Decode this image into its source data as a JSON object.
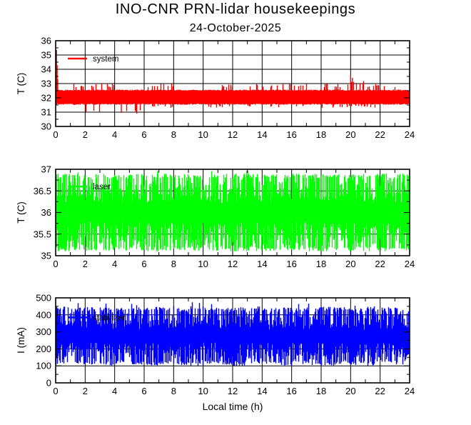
{
  "chart_data": {
    "type": "line",
    "title": "INO-CNR PRN-lidar housekeepings",
    "subtitle": "24-October-2025",
    "xlabel": "Local time (h)",
    "x_range": [
      0,
      24
    ],
    "x_ticks": [
      0,
      2,
      4,
      6,
      8,
      10,
      12,
      14,
      16,
      18,
      20,
      22,
      24
    ],
    "x_minor_step": 1,
    "grid": "on",
    "colors": {
      "axis": "#000000",
      "background": "#ffffff"
    },
    "charts": [
      {
        "id": "system-temperature",
        "legend": "system",
        "color": "#ff0000",
        "style": "band",
        "ylabel": "T (C)",
        "ylim": [
          30,
          36
        ],
        "yticks": [
          30,
          31,
          32,
          33,
          34,
          35,
          36
        ],
        "band": [
          31.6,
          32.5
        ],
        "hourly_envelope": {
          "max": [
            32.5,
            33.0,
            33.0,
            33.0,
            32.5,
            32.5,
            33.0,
            33.0,
            32.5,
            32.5,
            32.5,
            33.0,
            32.5,
            33.0,
            33.0,
            33.0,
            33.0,
            32.5,
            33.0,
            33.0,
            33.2,
            33.0,
            33.0,
            32.5
          ],
          "min": [
            31.5,
            31.4,
            31.0,
            31.5,
            31.0,
            31.0,
            31.3,
            31.3,
            31.5,
            31.5,
            31.3,
            31.3,
            31.5,
            31.3,
            31.3,
            31.3,
            31.4,
            31.5,
            31.3,
            31.3,
            31.3,
            31.3,
            31.5,
            31.5
          ]
        },
        "events": [
          {
            "x": 0.06,
            "y": 35.35
          },
          {
            "x": 0.1,
            "y": 34.3
          },
          {
            "x": 0.14,
            "y": 33.3
          },
          {
            "x": 4.45,
            "y": 30.95
          },
          {
            "x": 5.5,
            "y": 30.9
          },
          {
            "x": 20.0,
            "y": 33.6
          },
          {
            "x": 20.12,
            "y": 33.4
          }
        ],
        "legend_y": 34.75
      },
      {
        "id": "laser-temperature",
        "legend": "laser",
        "color": "#00ff00",
        "style": "noise",
        "ylabel": "T (C)",
        "ylim": [
          35,
          37
        ],
        "yticks": [
          35,
          35.5,
          36,
          36.5,
          37
        ],
        "band": [
          35.1,
          36.9
        ],
        "hourly_envelope": {
          "max": [
            36.9,
            36.9,
            36.9,
            36.9,
            36.9,
            36.9,
            36.9,
            36.9,
            36.9,
            36.9,
            36.9,
            36.9,
            36.9,
            36.9,
            36.9,
            36.9,
            36.9,
            36.9,
            36.9,
            36.9,
            36.9,
            36.9,
            36.9,
            36.9
          ],
          "min": [
            35.1,
            35.1,
            35.1,
            35.1,
            35.1,
            35.1,
            35.1,
            35.1,
            35.1,
            35.1,
            35.1,
            35.1,
            35.1,
            35.1,
            35.1,
            35.1,
            35.1,
            35.1,
            35.1,
            35.1,
            35.1,
            35.1,
            35.1,
            35.1
          ]
        },
        "events": [],
        "legend_y": 36.6
      },
      {
        "id": "stabilizer-current",
        "legend": "stabilizer",
        "color": "#0000ff",
        "style": "noise",
        "ylabel": "I (mA)",
        "ylim": [
          0,
          500
        ],
        "yticks": [
          0,
          100,
          200,
          300,
          400,
          500
        ],
        "band": [
          110,
          435
        ],
        "hourly_envelope": {
          "max": [
            450,
            445,
            450,
            445,
            440,
            445,
            450,
            445,
            440,
            455,
            445,
            440,
            445,
            450,
            440,
            445,
            440,
            445,
            450,
            445,
            440,
            450,
            445,
            445
          ],
          "min": [
            100,
            110,
            105,
            100,
            110,
            105,
            100,
            110,
            105,
            100,
            110,
            105,
            100,
            105,
            110,
            100,
            110,
            105,
            100,
            110,
            105,
            100,
            110,
            105
          ]
        },
        "events": [
          {
            "x": 9.75,
            "y": 470
          }
        ],
        "legend_y": 385
      }
    ]
  }
}
